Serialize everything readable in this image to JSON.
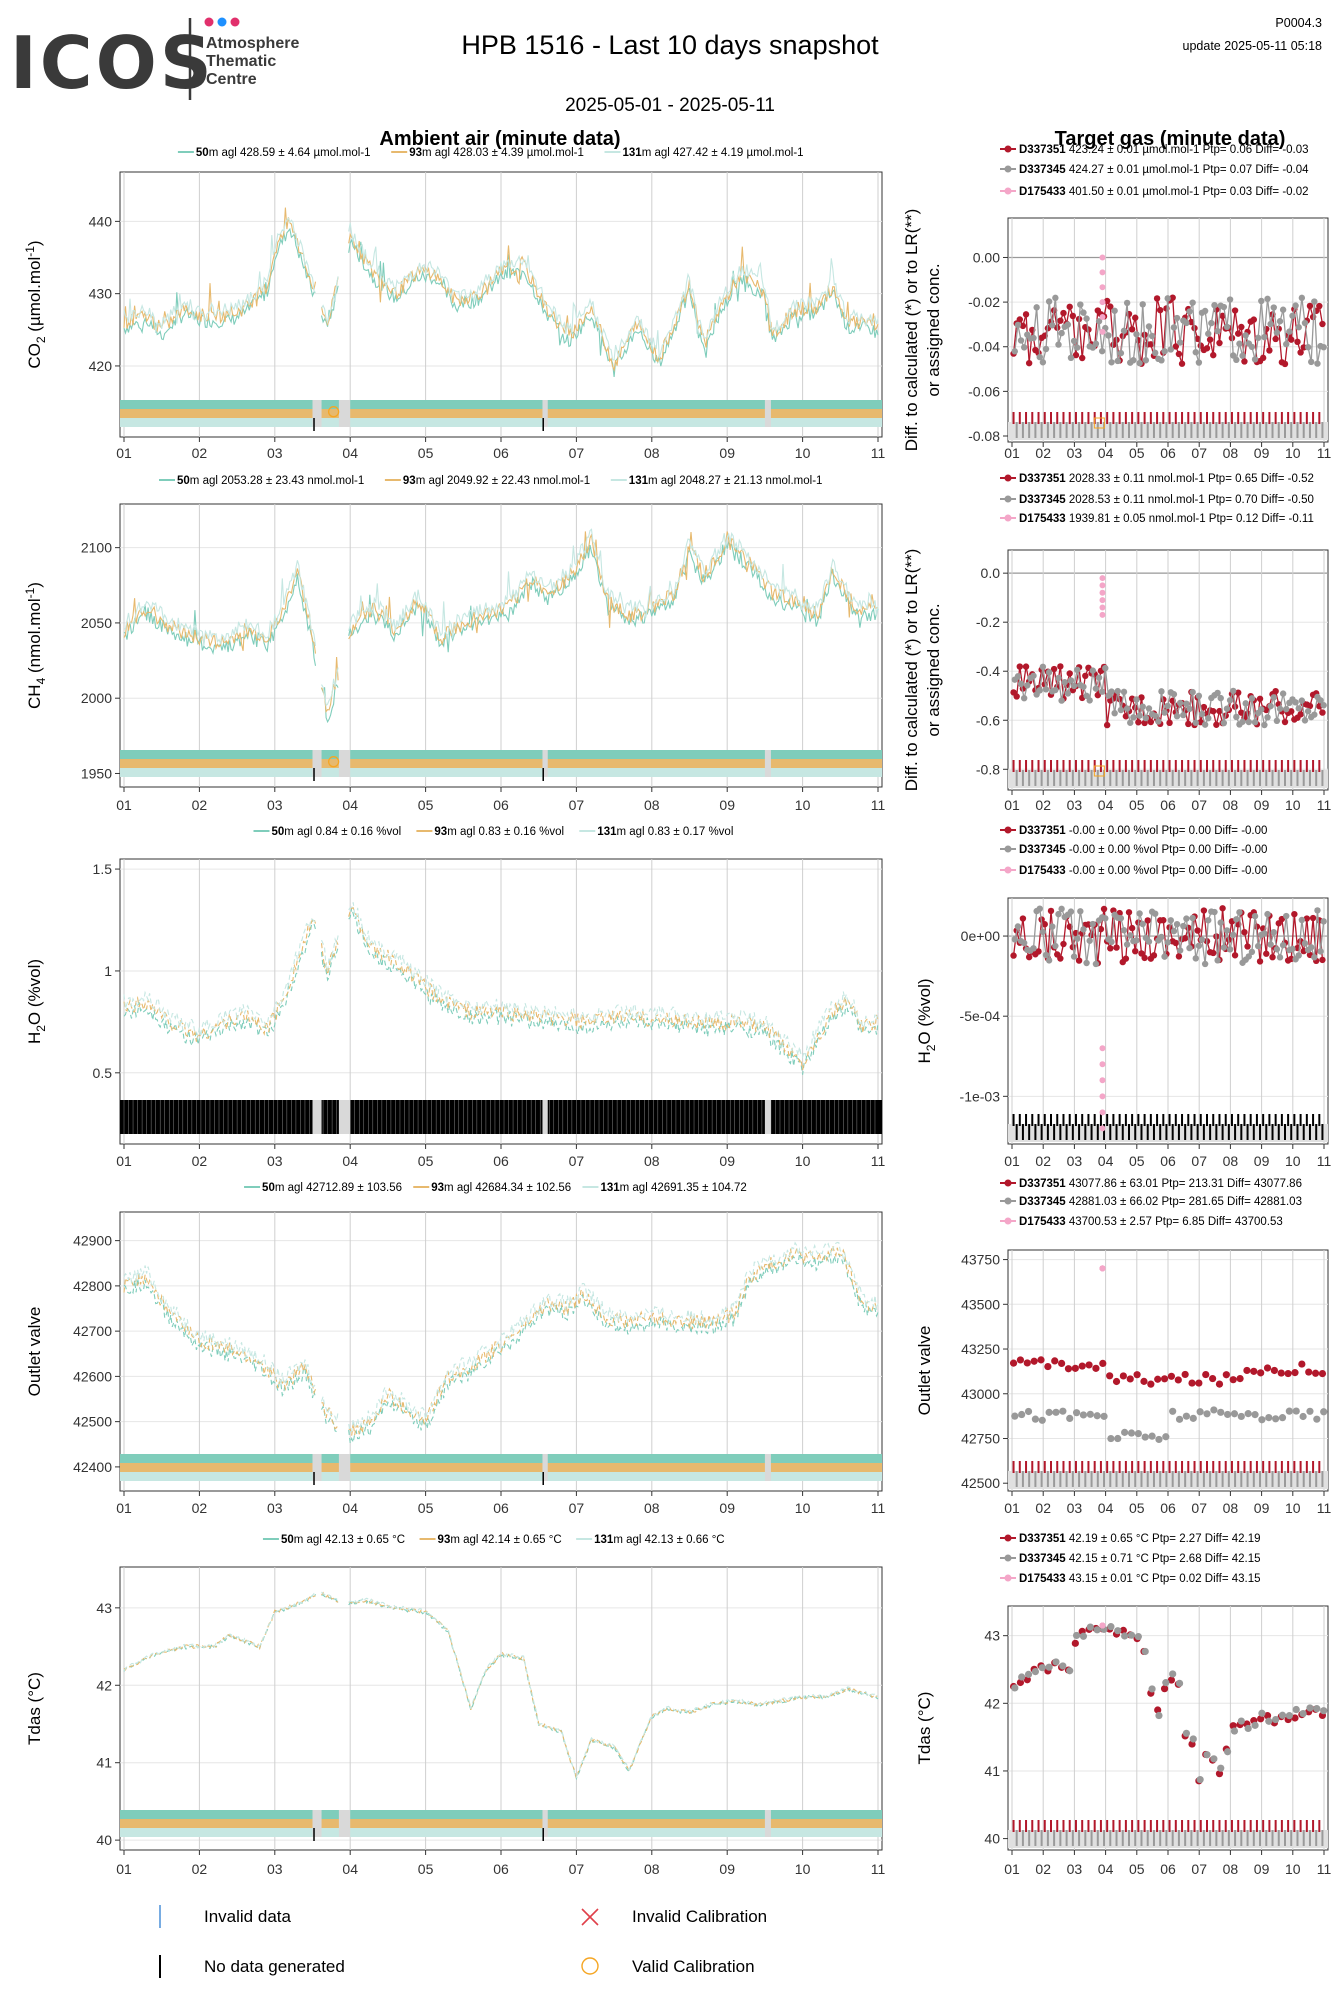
{
  "header": {
    "logo_text": "ICOS",
    "logo_sub": [
      "Atmosphere",
      "Thematic",
      "Centre"
    ],
    "title": "HPB 1516 - Last 10 days snapshot",
    "date_range": "2025-05-01 - 2025-05-11",
    "product_id": "P0004.3",
    "update": "update  2025-05-11 05:18"
  },
  "section_titles": {
    "left": "Ambient air (minute data)",
    "right": "Target gas (minute data)"
  },
  "colors": {
    "h50": "#7fcdbb",
    "h93": "#e7b96e",
    "h131": "#c6e7e2",
    "t1": "#b2182b",
    "t2": "#999999",
    "t3": "#f4a6c8",
    "invalid": "#4a90d9",
    "nodata": "#000000",
    "valid_cal": "#f5a623",
    "grid": "#e6e6e6",
    "frame": "#333333"
  },
  "x_ticks": [
    "01",
    "02",
    "03",
    "04",
    "05",
    "06",
    "07",
    "08",
    "09",
    "10",
    "11"
  ],
  "chart_data": [
    {
      "type": "line",
      "panel": "CO2 ambient",
      "ylabel": "CO2 (µmol.mol-1)",
      "ylim": [
        411,
        446
      ],
      "yticks": [
        420,
        430,
        440
      ],
      "series": [
        {
          "height": "50",
          "stats": "428.59 ± 4.64 µmol.mol-1"
        },
        {
          "height": "93",
          "stats": "428.03 ± 4.39 µmol.mol-1"
        },
        {
          "height": "131",
          "stats": "427.42 ± 4.19 µmol.mol-1"
        }
      ],
      "profile": [
        [
          1.0,
          426
        ],
        [
          1.3,
          427
        ],
        [
          1.5,
          425
        ],
        [
          1.8,
          428
        ],
        [
          2.0,
          427
        ],
        [
          2.4,
          427
        ],
        [
          2.6,
          428
        ],
        [
          2.9,
          431
        ],
        [
          3.0,
          436
        ],
        [
          3.2,
          440
        ],
        [
          3.5,
          431
        ],
        [
          3.7,
          426
        ],
        [
          4.0,
          438
        ],
        [
          4.3,
          433
        ],
        [
          4.6,
          430
        ],
        [
          4.9,
          433
        ],
        [
          5.1,
          433
        ],
        [
          5.4,
          429
        ],
        [
          5.7,
          430
        ],
        [
          6.0,
          433
        ],
        [
          6.3,
          434
        ],
        [
          6.6,
          428
        ],
        [
          6.9,
          424
        ],
        [
          7.2,
          428
        ],
        [
          7.5,
          420
        ],
        [
          7.8,
          426
        ],
        [
          8.1,
          421
        ],
        [
          8.3,
          426
        ],
        [
          8.5,
          431
        ],
        [
          8.7,
          423
        ],
        [
          8.9,
          428
        ],
        [
          9.2,
          433
        ],
        [
          9.5,
          430
        ],
        [
          9.6,
          424
        ],
        [
          9.9,
          428
        ],
        [
          10.2,
          428
        ],
        [
          10.4,
          431
        ],
        [
          10.6,
          426
        ],
        [
          10.9,
          426
        ],
        [
          11.0,
          425
        ]
      ]
    },
    {
      "type": "line",
      "panel": "CH4 ambient",
      "ylabel": "CH4 (nmol.mol-1)",
      "ylim": [
        1945,
        2125
      ],
      "yticks": [
        1950,
        2000,
        2050,
        2100
      ],
      "series": [
        {
          "height": "50",
          "stats": "2053.28 ± 23.43 nmol.mol-1"
        },
        {
          "height": "93",
          "stats": "2049.92 ± 22.43 nmol.mol-1"
        },
        {
          "height": "131",
          "stats": "2048.27 ± 21.13 nmol.mol-1"
        }
      ],
      "profile": [
        [
          1.0,
          2045
        ],
        [
          1.3,
          2060
        ],
        [
          1.6,
          2048
        ],
        [
          2.0,
          2040
        ],
        [
          2.3,
          2035
        ],
        [
          2.6,
          2045
        ],
        [
          2.9,
          2040
        ],
        [
          3.1,
          2055
        ],
        [
          3.3,
          2085
        ],
        [
          3.5,
          2040
        ],
        [
          3.7,
          1990
        ],
        [
          4.0,
          2045
        ],
        [
          4.3,
          2060
        ],
        [
          4.6,
          2045
        ],
        [
          4.9,
          2065
        ],
        [
          5.2,
          2040
        ],
        [
          5.5,
          2050
        ],
        [
          5.8,
          2055
        ],
        [
          6.1,
          2060
        ],
        [
          6.4,
          2080
        ],
        [
          6.6,
          2070
        ],
        [
          6.9,
          2080
        ],
        [
          7.2,
          2105
        ],
        [
          7.4,
          2065
        ],
        [
          7.7,
          2055
        ],
        [
          8.0,
          2060
        ],
        [
          8.3,
          2070
        ],
        [
          8.5,
          2100
        ],
        [
          8.7,
          2080
        ],
        [
          9.0,
          2105
        ],
        [
          9.3,
          2090
        ],
        [
          9.6,
          2070
        ],
        [
          9.9,
          2065
        ],
        [
          10.2,
          2055
        ],
        [
          10.4,
          2085
        ],
        [
          10.7,
          2060
        ],
        [
          11.0,
          2060
        ]
      ]
    },
    {
      "type": "line",
      "panel": "H2O ambient",
      "ylabel": "H2O (%vol)",
      "ylim": [
        0.18,
        1.52
      ],
      "yticks": [
        0.5,
        1.0,
        1.5
      ],
      "series": [
        {
          "height": "50",
          "stats": "0.84 ± 0.16 %vol"
        },
        {
          "height": "93",
          "stats": "0.83 ± 0.16 %vol"
        },
        {
          "height": "131",
          "stats": "0.83 ± 0.17 %vol"
        }
      ],
      "profile": [
        [
          1.0,
          0.82
        ],
        [
          1.3,
          0.85
        ],
        [
          1.6,
          0.75
        ],
        [
          2.0,
          0.68
        ],
        [
          2.3,
          0.74
        ],
        [
          2.6,
          0.78
        ],
        [
          2.9,
          0.72
        ],
        [
          3.1,
          0.85
        ],
        [
          3.3,
          1.05
        ],
        [
          3.5,
          1.25
        ],
        [
          3.7,
          1.0
        ],
        [
          4.0,
          1.32
        ],
        [
          4.3,
          1.1
        ],
        [
          4.6,
          1.05
        ],
        [
          4.9,
          0.95
        ],
        [
          5.2,
          0.86
        ],
        [
          5.6,
          0.8
        ],
        [
          6.0,
          0.8
        ],
        [
          6.4,
          0.78
        ],
        [
          6.8,
          0.76
        ],
        [
          7.2,
          0.75
        ],
        [
          7.6,
          0.78
        ],
        [
          8.0,
          0.76
        ],
        [
          8.4,
          0.76
        ],
        [
          8.8,
          0.74
        ],
        [
          9.2,
          0.75
        ],
        [
          9.5,
          0.72
        ],
        [
          9.8,
          0.62
        ],
        [
          10.0,
          0.55
        ],
        [
          10.2,
          0.68
        ],
        [
          10.4,
          0.8
        ],
        [
          10.6,
          0.85
        ],
        [
          10.8,
          0.72
        ],
        [
          11.0,
          0.75
        ]
      ]
    },
    {
      "type": "line",
      "panel": "Outlet valve ambient",
      "ylabel": "Outlet valve",
      "ylim": [
        42360,
        42950
      ],
      "yticks": [
        42400,
        42500,
        42600,
        42700,
        42800,
        42900
      ],
      "series": [
        {
          "height": "50",
          "stats": "42712.89 ± 103.56"
        },
        {
          "height": "93",
          "stats": "42684.34 ± 102.56"
        },
        {
          "height": "131",
          "stats": "42691.35 ± 104.72"
        }
      ],
      "profile": [
        [
          1.0,
          42800
        ],
        [
          1.3,
          42820
        ],
        [
          1.6,
          42740
        ],
        [
          2.0,
          42680
        ],
        [
          2.4,
          42660
        ],
        [
          2.8,
          42630
        ],
        [
          3.1,
          42580
        ],
        [
          3.4,
          42620
        ],
        [
          3.6,
          42540
        ],
        [
          3.8,
          42500
        ],
        [
          4.0,
          42480
        ],
        [
          4.3,
          42500
        ],
        [
          4.5,
          42560
        ],
        [
          4.8,
          42520
        ],
        [
          5.0,
          42500
        ],
        [
          5.3,
          42600
        ],
        [
          5.6,
          42620
        ],
        [
          6.0,
          42670
        ],
        [
          6.3,
          42710
        ],
        [
          6.6,
          42760
        ],
        [
          6.9,
          42750
        ],
        [
          7.1,
          42780
        ],
        [
          7.4,
          42730
        ],
        [
          7.7,
          42720
        ],
        [
          8.0,
          42730
        ],
        [
          8.4,
          42720
        ],
        [
          8.8,
          42720
        ],
        [
          9.1,
          42740
        ],
        [
          9.3,
          42820
        ],
        [
          9.6,
          42850
        ],
        [
          9.9,
          42870
        ],
        [
          10.2,
          42860
        ],
        [
          10.5,
          42880
        ],
        [
          10.8,
          42760
        ],
        [
          11.0,
          42750
        ]
      ]
    },
    {
      "type": "line",
      "panel": "Tdas ambient",
      "ylabel": "Tdas (°C)",
      "ylim": [
        39.95,
        43.45
      ],
      "yticks": [
        40,
        41,
        42,
        43
      ],
      "series": [
        {
          "height": "50",
          "stats": "42.13 ± 0.65 °C"
        },
        {
          "height": "93",
          "stats": "42.14 ± 0.65 °C"
        },
        {
          "height": "131",
          "stats": "42.13 ± 0.66 °C"
        }
      ],
      "profile": [
        [
          1.0,
          42.2
        ],
        [
          1.4,
          42.4
        ],
        [
          1.8,
          42.5
        ],
        [
          2.2,
          42.5
        ],
        [
          2.4,
          42.65
        ],
        [
          2.8,
          42.5
        ],
        [
          3.0,
          42.95
        ],
        [
          3.3,
          43.05
        ],
        [
          3.6,
          43.2
        ],
        [
          3.9,
          43.05
        ],
        [
          4.2,
          43.1
        ],
        [
          4.6,
          43.0
        ],
        [
          5.0,
          42.95
        ],
        [
          5.3,
          42.7
        ],
        [
          5.6,
          41.7
        ],
        [
          5.8,
          42.2
        ],
        [
          6.0,
          42.4
        ],
        [
          6.3,
          42.35
        ],
        [
          6.5,
          41.5
        ],
        [
          6.8,
          41.4
        ],
        [
          7.0,
          40.8
        ],
        [
          7.2,
          41.3
        ],
        [
          7.5,
          41.2
        ],
        [
          7.7,
          40.9
        ],
        [
          8.0,
          41.6
        ],
        [
          8.2,
          41.7
        ],
        [
          8.5,
          41.65
        ],
        [
          8.8,
          41.75
        ],
        [
          9.1,
          41.8
        ],
        [
          9.4,
          41.75
        ],
        [
          9.7,
          41.8
        ],
        [
          10.0,
          41.85
        ],
        [
          10.3,
          41.85
        ],
        [
          10.6,
          41.95
        ],
        [
          11.0,
          41.85
        ]
      ]
    },
    {
      "type": "scatter",
      "panel": "CO2 target",
      "ylabel": "Diff. to calculated (*) or to LR(**) or assigned conc.",
      "ylim": [
        -0.08,
        0.015
      ],
      "yticks": [
        -0.08,
        -0.06,
        -0.04,
        -0.02,
        0.0
      ],
      "ytick_labels": [
        "-0.08",
        "-0.06",
        "-0.04",
        "-0.02",
        "0.00"
      ],
      "tanks": [
        {
          "id": "D337351",
          "stats": "423.24 ± 0.01 µmol.mol-1",
          "ptp": "Ptp= 0.06",
          "diff": "Diff= -0.03"
        },
        {
          "id": "D337345",
          "stats": "424.27 ± 0.01 µmol.mol-1",
          "ptp": "Ptp= 0.07",
          "diff": "Diff= -0.04"
        },
        {
          "id": "D175433",
          "stats": "401.50 ± 0.01 µmol.mol-1",
          "ptp": "Ptp= 0.03",
          "diff": "Diff= -0.02"
        }
      ],
      "tank_means": [
        -0.03,
        -0.04,
        -0.02
      ]
    },
    {
      "type": "scatter",
      "panel": "CH4 target",
      "ylabel": "Diff. to calculated (*) or to LR(**) or assigned conc.",
      "ylim": [
        -0.86,
        0.07
      ],
      "yticks": [
        -0.8,
        -0.6,
        -0.4,
        -0.2,
        0.0
      ],
      "ytick_labels": [
        "-0.8",
        "-0.6",
        "-0.4",
        "-0.2",
        "0.0"
      ],
      "tanks": [
        {
          "id": "D337351",
          "stats": "2028.33 ± 0.11 nmol.mol-1",
          "ptp": "Ptp= 0.65",
          "diff": "Diff= -0.52"
        },
        {
          "id": "D337345",
          "stats": "2028.53 ± 0.11 nmol.mol-1",
          "ptp": "Ptp= 0.70",
          "diff": "Diff= -0.50"
        },
        {
          "id": "D175433",
          "stats": "1939.81 ± 0.05 nmol.mol-1",
          "ptp": "Ptp= 0.12",
          "diff": "Diff= -0.11"
        }
      ],
      "tank_means": [
        -0.52,
        -0.5,
        -0.11
      ]
    },
    {
      "type": "scatter",
      "panel": "H2O target",
      "ylabel": "H2O (%vol)",
      "ylim": [
        -0.00126,
        0.0002
      ],
      "yticks": [
        -0.001,
        -0.0005,
        0.0
      ],
      "ytick_labels": [
        "-1e-03",
        "-5e-04",
        "0e+00"
      ],
      "tanks": [
        {
          "id": "D337351",
          "stats": "-0.00 ± 0.00 %vol",
          "ptp": "Ptp= 0.00",
          "diff": "Diff= -0.00"
        },
        {
          "id": "D337345",
          "stats": "-0.00 ± 0.00 %vol",
          "ptp": "Ptp= 0.00",
          "diff": "Diff= -0.00"
        },
        {
          "id": "D175433",
          "stats": "-0.00 ± 0.00 %vol",
          "ptp": "Ptp= 0.00",
          "diff": "Diff= -0.00"
        }
      ],
      "tank_means": [
        0.0,
        0.0,
        -0.0007
      ]
    },
    {
      "type": "scatter",
      "panel": "Outlet valve target",
      "ylabel": "Outlet valve",
      "ylim": [
        42490,
        43770
      ],
      "yticks": [
        42500,
        42750,
        43000,
        43250,
        43500,
        43750
      ],
      "tanks": [
        {
          "id": "D337351",
          "stats": "43077.86 ± 63.01",
          "ptp": "Ptp= 213.31",
          "diff": "Diff= 43077.86"
        },
        {
          "id": "D337345",
          "stats": "42881.03 ± 66.02",
          "ptp": "Ptp= 281.65",
          "diff": "Diff= 42881.03"
        },
        {
          "id": "D175433",
          "stats": "43700.53 ± 2.57",
          "ptp": "Ptp= 6.85",
          "diff": "Diff= 43700.53"
        }
      ],
      "tank_means": [
        43077.86,
        42881.03,
        43700.53
      ]
    },
    {
      "type": "scatter",
      "panel": "Tdas target",
      "ylabel": "Tdas (°C)",
      "ylim": [
        39.92,
        43.35
      ],
      "yticks": [
        40,
        41,
        42,
        43
      ],
      "tanks": [
        {
          "id": "D337351",
          "stats": "42.19 ± 0.65 °C",
          "ptp": "Ptp= 2.27",
          "diff": "Diff= 42.19"
        },
        {
          "id": "D337345",
          "stats": "42.15 ± 0.71 °C",
          "ptp": "Ptp= 2.68",
          "diff": "Diff= 42.15"
        },
        {
          "id": "D175433",
          "stats": "43.15 ± 0.01 °C",
          "ptp": "Ptp= 0.02",
          "diff": "Diff= 43.15"
        }
      ],
      "tank_means": [
        42.19,
        42.15,
        43.15
      ]
    }
  ],
  "legend": {
    "invalid_data": "Invalid data",
    "no_data": "No data generated",
    "invalid_cal": "Invalid Calibration",
    "valid_cal": "Valid Calibration"
  }
}
